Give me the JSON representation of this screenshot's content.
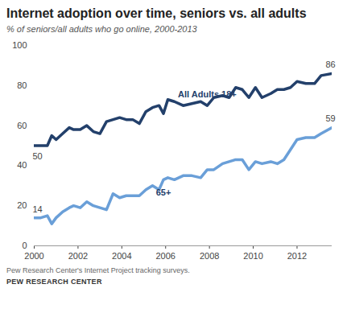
{
  "chart_data": {
    "type": "line",
    "title": "Internet adoption over time, seniors vs. all adults",
    "subtitle": "% of seniors/all adults who go online, 2000-2013",
    "source": "Pew Research Center's Internet Project tracking surveys.",
    "publisher": "PEW RESEARCH CENTER",
    "x": [
      2000,
      2000.3,
      2000.6,
      2000.8,
      2001,
      2001.3,
      2001.6,
      2001.8,
      2002.1,
      2002.4,
      2002.7,
      2003,
      2003.3,
      2003.6,
      2003.9,
      2004.2,
      2004.5,
      2004.8,
      2005.1,
      2005.4,
      2005.7,
      2005.9,
      2006.1,
      2006.4,
      2006.8,
      2007.2,
      2007.6,
      2007.9,
      2008.2,
      2008.6,
      2008.9,
      2009.2,
      2009.5,
      2009.8,
      2010.1,
      2010.4,
      2010.8,
      2011.1,
      2011.4,
      2011.7,
      2012,
      2012.4,
      2012.8,
      2013.1,
      2013.6
    ],
    "series": [
      {
        "name": "All Adults 18+",
        "color": "#23406b",
        "values": [
          50,
          50,
          50,
          55,
          53,
          56,
          59,
          58,
          58,
          60,
          57,
          56,
          62,
          63,
          64,
          63,
          63,
          61,
          67,
          69,
          70,
          66,
          73,
          72,
          70,
          71,
          72,
          70,
          74,
          75,
          74,
          79,
          78,
          74,
          79,
          74,
          76,
          78,
          78,
          79,
          82,
          81,
          81,
          85,
          86
        ]
      },
      {
        "name": "65+",
        "color": "#6a9fd8",
        "values": [
          14,
          14,
          15,
          11,
          14,
          17,
          19,
          20,
          19,
          22,
          20,
          19,
          18,
          26,
          24,
          25,
          25,
          25,
          28,
          30,
          28,
          33,
          34,
          33,
          35,
          35,
          34,
          38,
          38,
          41,
          42,
          43,
          43,
          38,
          42,
          41,
          42,
          41,
          43,
          48,
          53,
          54,
          54,
          56,
          59
        ]
      }
    ],
    "xlim": [
      2000,
      2013.6
    ],
    "xticks": [
      2000,
      2002,
      2004,
      2006,
      2008,
      2010,
      2012
    ],
    "ylim": [
      0,
      100
    ],
    "yticks": [
      0,
      20,
      40,
      60,
      80,
      100
    ],
    "grid": false,
    "legend": false
  }
}
